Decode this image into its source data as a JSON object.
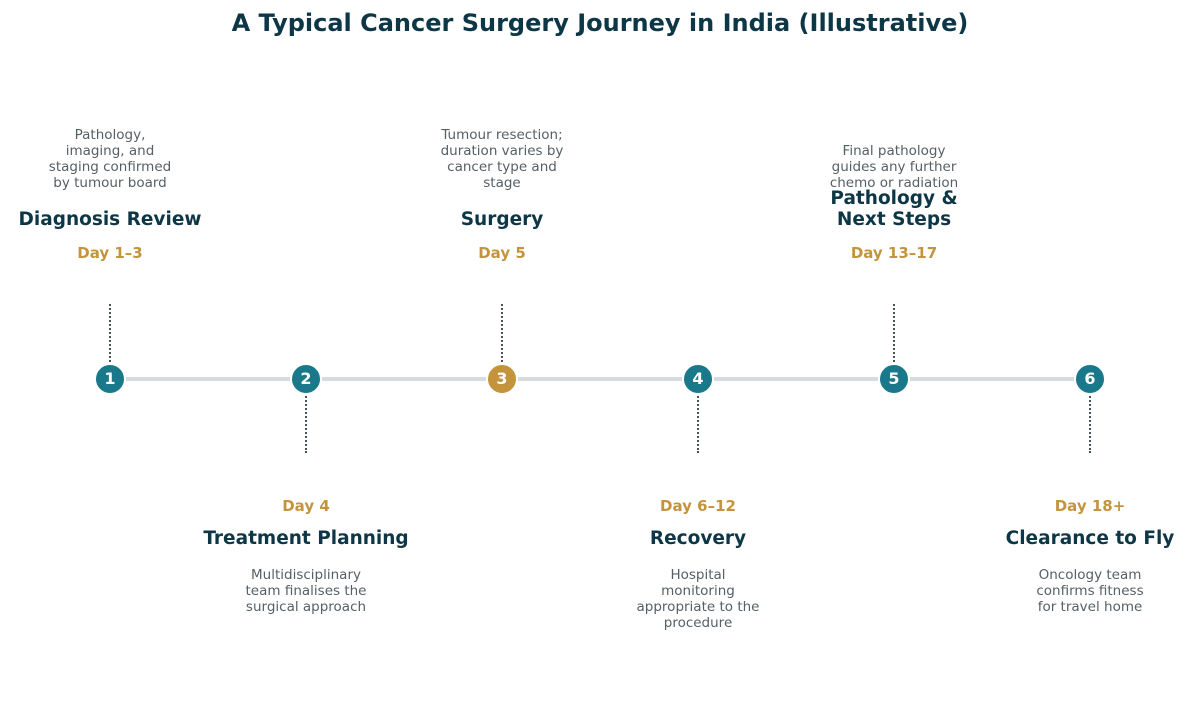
{
  "title": "A Typical Cancer Surgery Journey in India (Illustrative)",
  "colors": {
    "primary_node": "#19788a",
    "highlight_node": "#c4943c",
    "heading": "#0d3646",
    "day_label": "#c4943c",
    "description": "#555f66",
    "line": "#d4dce2"
  },
  "steps": [
    {
      "number": "1",
      "day": "Day 1–3",
      "title": "Diagnosis Review",
      "description_lines": [
        "Pathology,",
        "imaging, and",
        "staging confirmed",
        "by tumour board"
      ]
    },
    {
      "number": "2",
      "day": "Day 4",
      "title": "Treatment Planning",
      "description_lines": [
        "Multidisciplinary",
        "team finalises the",
        "surgical approach"
      ]
    },
    {
      "number": "3",
      "day": "Day 5",
      "title": "Surgery",
      "description_lines": [
        "Tumour resection;",
        "duration varies by",
        "cancer type and",
        "stage"
      ]
    },
    {
      "number": "4",
      "day": "Day 6–12",
      "title": "Recovery",
      "description_lines": [
        "Hospital",
        "monitoring",
        "appropriate to the",
        "procedure"
      ]
    },
    {
      "number": "5",
      "day": "Day 13–17",
      "title_lines": [
        "Pathology &",
        "Next Steps"
      ],
      "description_lines": [
        "Final pathology",
        "guides any further",
        "chemo or radiation"
      ]
    },
    {
      "number": "6",
      "day": "Day 18+",
      "title": "Clearance to Fly",
      "description_lines": [
        "Oncology team",
        "confirms fitness",
        "for travel home"
      ]
    }
  ]
}
